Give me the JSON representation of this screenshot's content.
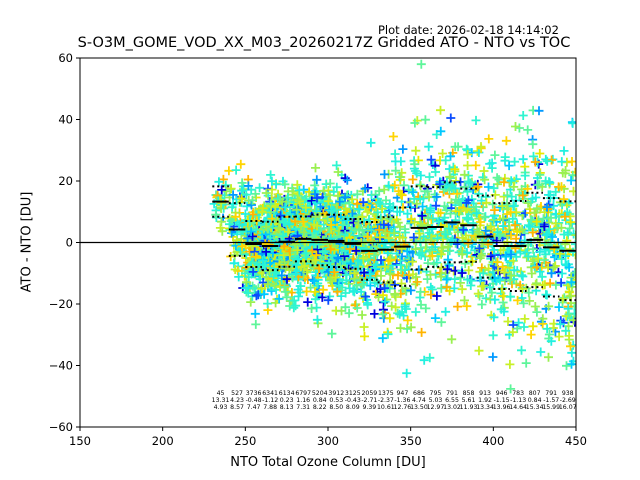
{
  "header": {
    "plot_date": "Plot date: 2026-02-18 14:14:02"
  },
  "colors": {
    "marker_palette": [
      "#0000dd",
      "#0a4cff",
      "#0099ff",
      "#00c8ff",
      "#22f0e0",
      "#2ef5d0",
      "#5ef59a",
      "#9af050",
      "#c8f028",
      "#e8e800",
      "#ffd400",
      "#ffb400"
    ],
    "stat_line": "#000000"
  },
  "chart_data": {
    "type": "scatter",
    "title": "S-O3M_GOME_VOD_XX_M03_20260217Z Gridded ATO - NTO vs TOC",
    "xlabel": "NTO Total Ozone Column [DU]",
    "ylabel": "ATO - NTO [DU]",
    "xlim": [
      150,
      450
    ],
    "ylim": [
      -60,
      60
    ],
    "xticks": [
      "150",
      "200",
      "250",
      "300",
      "350",
      "400",
      "450"
    ],
    "yticks": [
      "60",
      "40",
      "20",
      "0",
      "−20",
      "−40",
      "−60"
    ],
    "zero_line": 0,
    "grid": false,
    "bin_width": 10,
    "bins": {
      "start": [
        230,
        240,
        250,
        260,
        270,
        280,
        290,
        300,
        310,
        320,
        330,
        340,
        350,
        360,
        370,
        380,
        390,
        400,
        410,
        420,
        430,
        440
      ],
      "count": [
        "45",
        "527",
        "3736",
        "6341",
        "6134",
        "6797",
        "5204",
        "3912",
        "3125",
        "2059",
        "1375",
        "947",
        "686",
        "795",
        "791",
        "858",
        "913",
        "946",
        "783",
        "807",
        "791",
        "938"
      ],
      "mean": [
        "13.31",
        "4.23",
        "-0.48",
        "-1.12",
        "0.23",
        "1.16",
        "0.84",
        "0.53",
        "-0.43",
        "-2.71",
        "-2.37",
        "-1.36",
        "4.74",
        "5.03",
        "6.55",
        "5.61",
        "1.92",
        "-1.15",
        "-1.13",
        "0.84",
        "-1.57",
        "-2.69"
      ],
      "std": [
        "4.93",
        "8.57",
        "7.47",
        "7.88",
        "8.13",
        "7.31",
        "8.22",
        "8.50",
        "8.09",
        "9.39",
        "10.61",
        "12.76",
        "13.50",
        "12.97",
        "13.02",
        "11.93",
        "13.34",
        "13.96",
        "14.64",
        "15.34",
        "15.99",
        "16.07"
      ]
    },
    "marker": "+",
    "point_cloud": {
      "x_range": [
        230,
        450
      ],
      "approx_y_extent": [
        -47,
        58
      ]
    }
  }
}
